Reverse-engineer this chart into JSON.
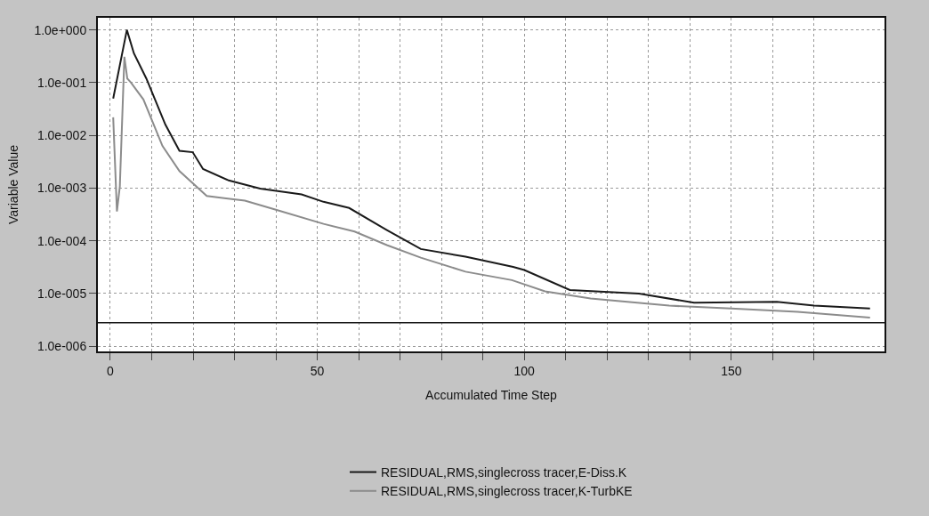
{
  "chart_data": {
    "type": "line",
    "xlabel": "Accumulated Time Step",
    "ylabel": "Variable Value",
    "log": "y",
    "xlim": [
      -3,
      187
    ],
    "ylim": [
      8e-07,
      1.7
    ],
    "xticks": [
      0,
      {
        "value": 10,
        "label": null
      },
      {
        "value": 20,
        "label": null
      },
      {
        "value": 30,
        "label": null
      },
      {
        "value": 40,
        "label": null
      },
      50,
      {
        "value": 60,
        "label": null
      },
      {
        "value": 70,
        "label": null
      },
      {
        "value": 80,
        "label": null
      },
      {
        "value": 90,
        "label": null
      },
      100,
      {
        "value": 110,
        "label": null
      },
      {
        "value": 120,
        "label": null
      },
      {
        "value": 130,
        "label": null
      },
      {
        "value": 140,
        "label": null
      },
      150,
      {
        "value": 160,
        "label": null
      },
      {
        "value": 170,
        "label": null
      }
    ],
    "yticks": [
      {
        "value": 1,
        "label": "1.0e+000"
      },
      {
        "value": 0.1,
        "label": "1.0e-001"
      },
      {
        "value": 0.01,
        "label": "1.0e-002"
      },
      {
        "value": 0.001,
        "label": "1.0e-003"
      },
      {
        "value": 0.0001,
        "label": "1.0e-004"
      },
      {
        "value": 1e-05,
        "label": "1.0e-005"
      },
      {
        "value": 1e-06,
        "label": "1.0e-006"
      }
    ],
    "grid": true,
    "legend": "bottom",
    "line_style": "solid",
    "marker": "none",
    "ref_lines": [
      {
        "axis": "y",
        "value": 2.8e-06,
        "color": "#1a1a1a"
      }
    ],
    "series": [
      {
        "name": "RESIDUAL,RMS,singlecross tracer,E-Diss.K",
        "color": "#1a1a1a",
        "x": [
          0.7,
          4,
          5.7,
          8.7,
          13.3,
          16.7,
          19.9,
          22.4,
          28.6,
          36.2,
          46.2,
          51.5,
          57.7,
          66.8,
          75,
          85.8,
          97.3,
          100,
          111,
          127.7,
          141,
          161,
          170,
          183.5
        ],
        "values": [
          0.05,
          1.0,
          0.36,
          0.12,
          0.016,
          0.0051,
          0.0048,
          0.0023,
          0.0014,
          0.00098,
          0.00076,
          0.00055,
          0.00042,
          0.00016,
          7e-05,
          5e-05,
          3.2e-05,
          2.8e-05,
          1.17e-05,
          1e-05,
          6.7e-06,
          7e-06,
          5.9e-06,
          5.2e-06
        ]
      },
      {
        "name": "RESIDUAL,RMS,singlecross tracer,K-TurbKE",
        "color": "#8c8c8c",
        "x": [
          0.7,
          1.6,
          2.3,
          3.4,
          4.1,
          5,
          8,
          12.6,
          16.7,
          23.3,
          32.5,
          40,
          51.5,
          59,
          66.8,
          75,
          85.8,
          97,
          105,
          116,
          135,
          150,
          166,
          183.5
        ],
        "values": [
          0.022,
          0.00036,
          0.00107,
          0.31,
          0.12,
          0.1,
          0.048,
          0.0063,
          0.0021,
          0.00071,
          0.00058,
          0.00039,
          0.00021,
          0.00015,
          8.3e-05,
          4.8e-05,
          2.6e-05,
          1.8e-05,
          1.1e-05,
          8.1e-06,
          5.9e-06,
          5.2e-06,
          4.5e-06,
          3.5e-06
        ]
      }
    ]
  }
}
